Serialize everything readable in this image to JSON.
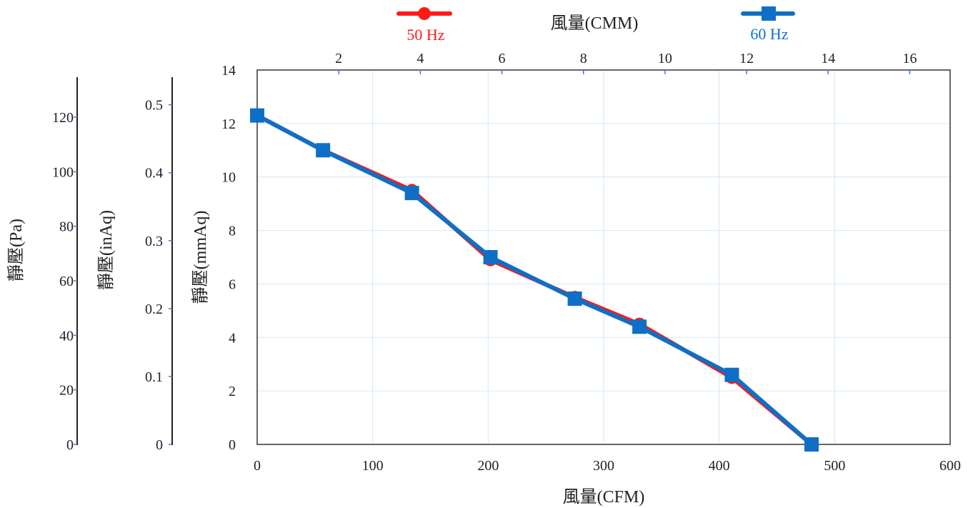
{
  "chart_data": {
    "type": "line",
    "x_bottom": {
      "label": "風量(CFM)",
      "range": [
        0,
        600
      ],
      "ticks": [
        0,
        100,
        200,
        300,
        400,
        500,
        600
      ]
    },
    "x_top": {
      "label": "風量(CMM)",
      "ticks": [
        2,
        4,
        6,
        8,
        10,
        12,
        14,
        16
      ]
    },
    "y_main": {
      "label": "靜壓(mmAq)",
      "range": [
        0,
        14
      ],
      "ticks": [
        0,
        2,
        4,
        6,
        8,
        10,
        12,
        14
      ]
    },
    "y_inaq": {
      "label": "靜壓(inAq)",
      "ticks": [
        0,
        0.1,
        0.2,
        0.3,
        0.4,
        0.5
      ],
      "tick_labels": [
        "0",
        "0.1",
        "0.2",
        "0.3",
        "0.4",
        "0.5"
      ]
    },
    "y_pa": {
      "label": "靜壓(Pa)",
      "ticks": [
        0,
        20,
        40,
        60,
        80,
        100,
        120
      ]
    },
    "grid": true,
    "legend": [
      {
        "name": "50 Hz",
        "color": "#ff1a1a",
        "marker": "circle"
      },
      {
        "name": "60 Hz",
        "color": "#0f6fc6",
        "marker": "square"
      }
    ],
    "series": [
      {
        "name": "50 Hz",
        "color": "#ff1a1a",
        "marker": "circle",
        "x": [
          0,
          57,
          134,
          202,
          275,
          331,
          411,
          480
        ],
        "y": [
          12.3,
          11.0,
          9.5,
          6.9,
          5.5,
          4.5,
          2.5,
          0
        ]
      },
      {
        "name": "60 Hz",
        "color": "#0f6fc6",
        "marker": "square",
        "x": [
          0,
          57,
          134,
          202,
          275,
          331,
          411,
          480
        ],
        "y": [
          12.3,
          11.0,
          9.4,
          7.0,
          5.45,
          4.4,
          2.6,
          0
        ]
      }
    ]
  }
}
